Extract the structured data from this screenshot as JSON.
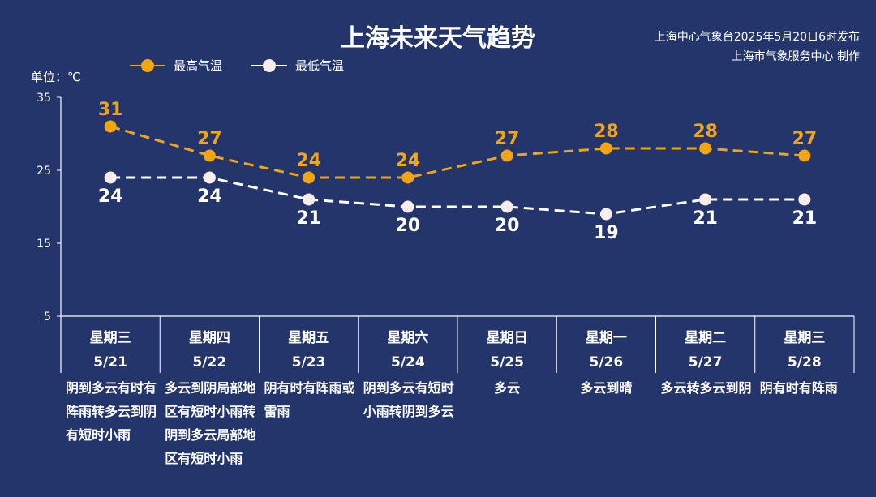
{
  "header": {
    "title": "上海未来天气趋势",
    "issuer_line1": "上海中心气象台2025年5月20日6时发布",
    "issuer_line2": "上海市气象服务中心 制作"
  },
  "colors": {
    "background": "#23356a",
    "high": "#f0a418",
    "low": "#ffffff"
  },
  "chart_data": {
    "type": "line",
    "unit_label": "单位：℃",
    "ylim": [
      5,
      35
    ],
    "yticks": [
      5,
      15,
      25,
      35
    ],
    "legend_position": "top-left",
    "grid": false,
    "categories": [
      {
        "weekday": "星期三",
        "date": "5/21",
        "weather": "阴到多云有时有阵雨转多云到阴有短时小雨"
      },
      {
        "weekday": "星期四",
        "date": "5/22",
        "weather": "多云到阴局部地区有短时小雨转阴到多云局部地区有短时小雨"
      },
      {
        "weekday": "星期五",
        "date": "5/23",
        "weather": "阴有时有阵雨或雷雨"
      },
      {
        "weekday": "星期六",
        "date": "5/24",
        "weather": "阴到多云有短时小雨转阴到多云"
      },
      {
        "weekday": "星期日",
        "date": "5/25",
        "weather": "多云"
      },
      {
        "weekday": "星期一",
        "date": "5/26",
        "weather": "多云到晴"
      },
      {
        "weekday": "星期二",
        "date": "5/27",
        "weather": "多云转多云到阴"
      },
      {
        "weekday": "星期三",
        "date": "5/28",
        "weather": "阴有时有阵雨"
      }
    ],
    "series": [
      {
        "name": "最高气温",
        "values": [
          31,
          27,
          24,
          24,
          27,
          28,
          28,
          27
        ]
      },
      {
        "name": "最低气温",
        "values": [
          24,
          24,
          21,
          20,
          20,
          19,
          21,
          21
        ]
      }
    ]
  }
}
